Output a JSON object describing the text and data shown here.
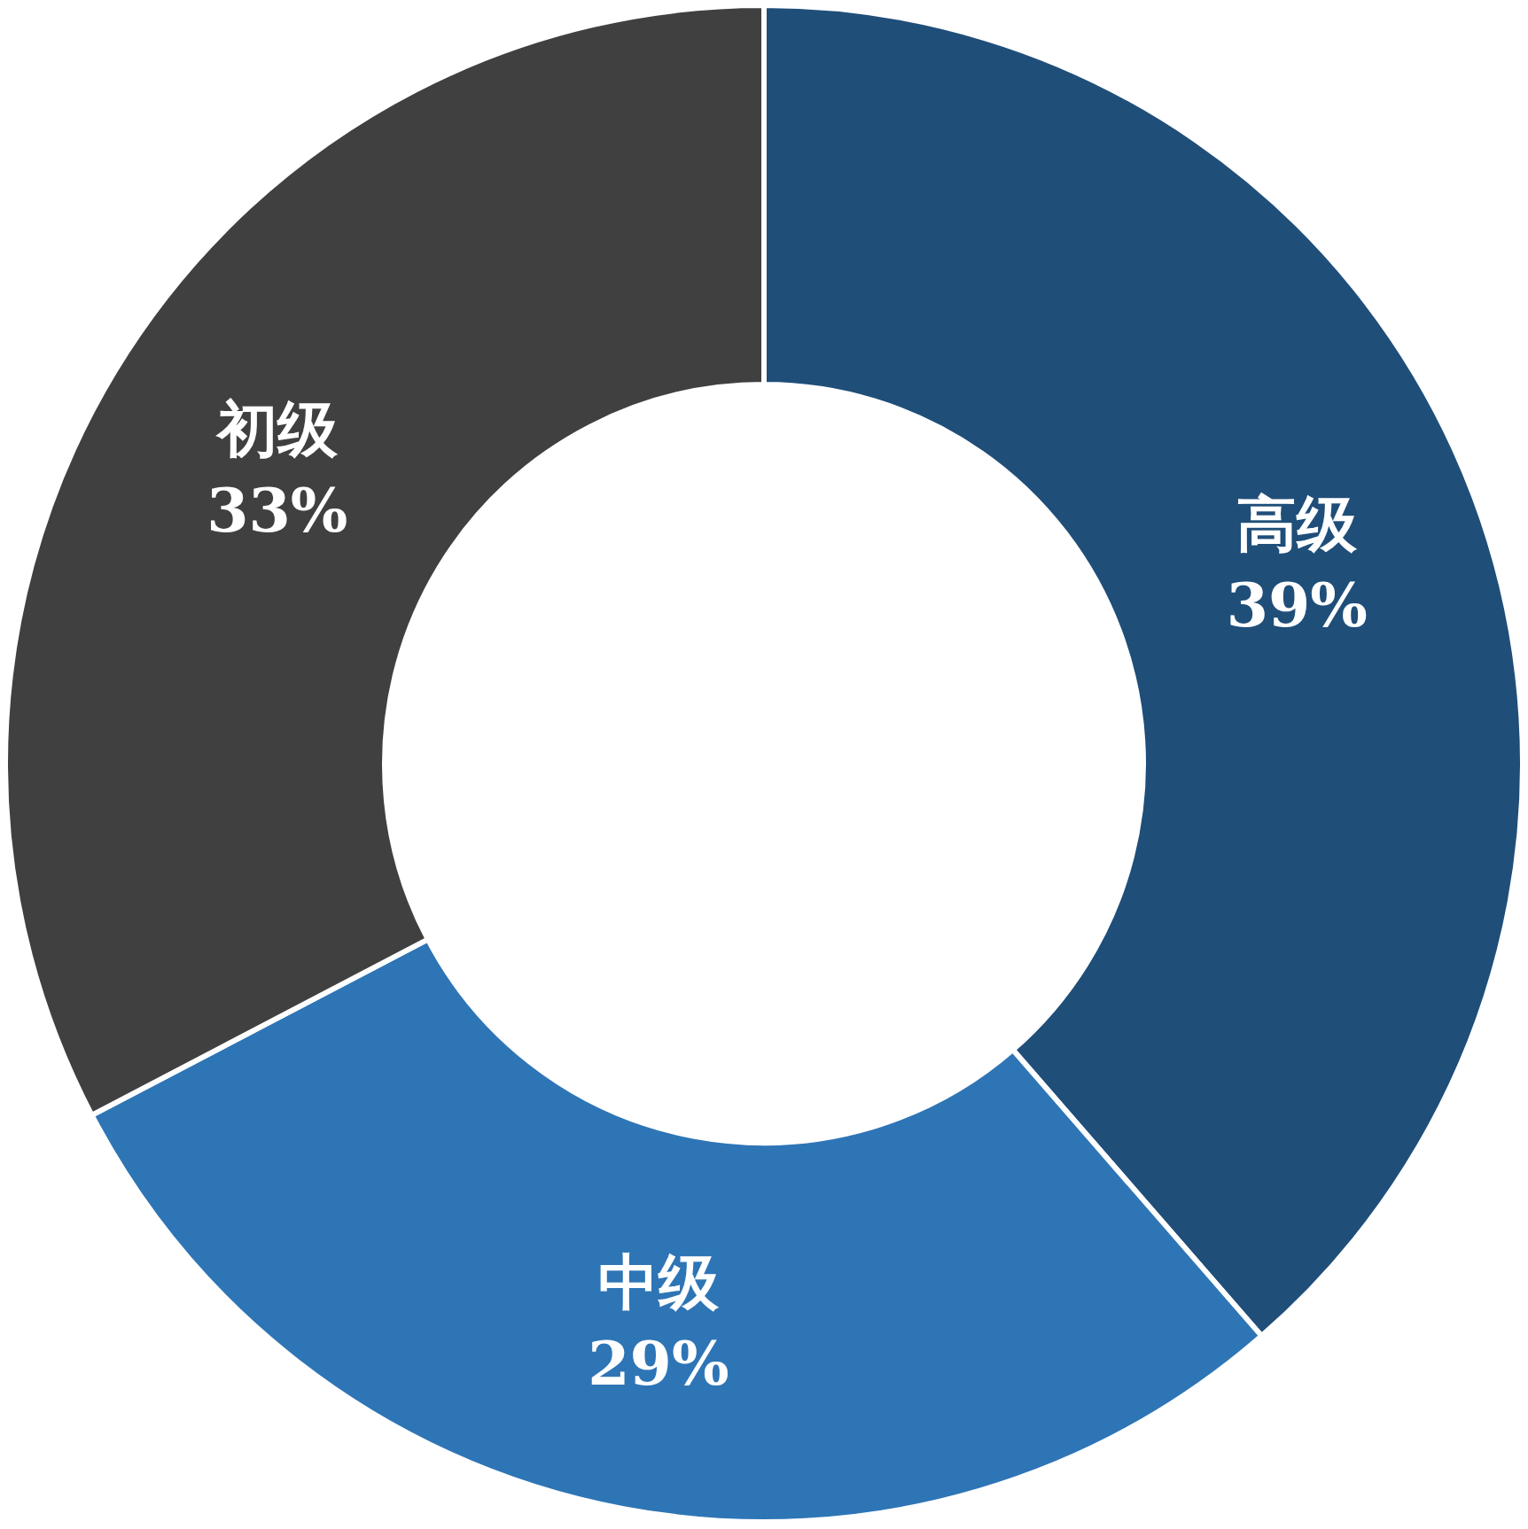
{
  "chart_data": {
    "type": "donut",
    "categories": [
      "高级",
      "中级",
      "初级"
    ],
    "values": [
      39,
      29,
      33
    ],
    "colors": [
      "#1f4e79",
      "#2e75b6",
      "#404040"
    ],
    "value_labels": [
      "39%",
      "29%",
      "33%"
    ],
    "legend": false
  }
}
